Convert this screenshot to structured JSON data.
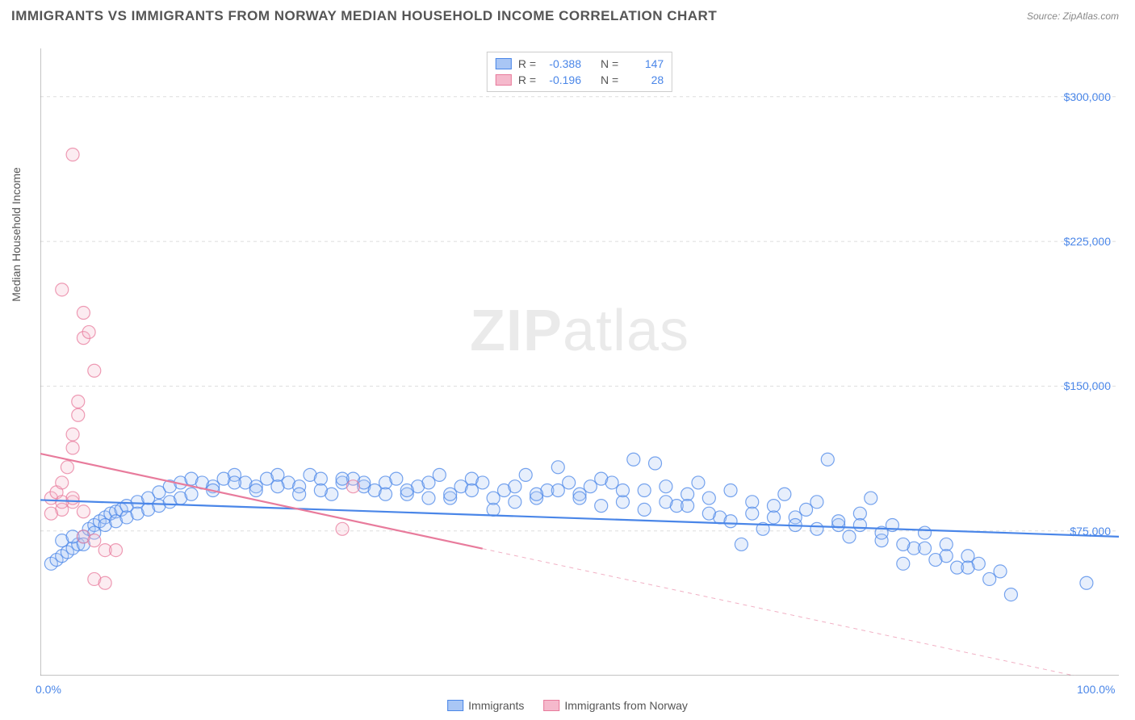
{
  "title": "IMMIGRANTS VS IMMIGRANTS FROM NORWAY MEDIAN HOUSEHOLD INCOME CORRELATION CHART",
  "source": "Source: ZipAtlas.com",
  "watermark": {
    "zip": "ZIP",
    "atlas": "atlas"
  },
  "chart": {
    "type": "scatter",
    "background_color": "#ffffff",
    "grid_color": "#dddddd",
    "axis_color": "#888888",
    "ylabel": "Median Household Income",
    "label_fontsize": 14,
    "label_color": "#555555",
    "tick_label_color": "#4a86e8",
    "xlim": [
      0,
      100
    ],
    "ylim": [
      0,
      325000
    ],
    "x_ticks": [
      0,
      100
    ],
    "x_tick_labels": [
      "0.0%",
      "100.0%"
    ],
    "x_minor_ticks": [
      10,
      20,
      30,
      40,
      50,
      60,
      70,
      80,
      90
    ],
    "y_ticks": [
      75000,
      150000,
      225000,
      300000
    ],
    "y_tick_labels": [
      "$75,000",
      "$150,000",
      "$225,000",
      "$300,000"
    ],
    "marker_radius": 8,
    "marker_stroke_width": 1.2,
    "marker_fill_opacity": 0.28,
    "line_width": 2.2,
    "series": [
      {
        "name": "Immigrants",
        "color_stroke": "#4a86e8",
        "color_fill": "#a9c6f5",
        "R": "-0.388",
        "N": "147",
        "trend": {
          "x1": 0,
          "y1": 91000,
          "x2": 100,
          "y2": 72000,
          "solid_until_x": 100
        },
        "points": [
          [
            1,
            58000
          ],
          [
            1.5,
            60000
          ],
          [
            2,
            62000
          ],
          [
            2.5,
            64000
          ],
          [
            3,
            66000
          ],
          [
            3.5,
            68000
          ],
          [
            4,
            72000
          ],
          [
            4.5,
            76000
          ],
          [
            5,
            78000
          ],
          [
            5.5,
            80000
          ],
          [
            6,
            82000
          ],
          [
            6.5,
            84000
          ],
          [
            7,
            85000
          ],
          [
            7.5,
            86000
          ],
          [
            8,
            88000
          ],
          [
            9,
            90000
          ],
          [
            10,
            92000
          ],
          [
            11,
            95000
          ],
          [
            12,
            98000
          ],
          [
            13,
            100000
          ],
          [
            14,
            102000
          ],
          [
            15,
            100000
          ],
          [
            16,
            98000
          ],
          [
            17,
            102000
          ],
          [
            18,
            104000
          ],
          [
            19,
            100000
          ],
          [
            20,
            98000
          ],
          [
            21,
            102000
          ],
          [
            22,
            104000
          ],
          [
            23,
            100000
          ],
          [
            24,
            98000
          ],
          [
            25,
            104000
          ],
          [
            26,
            102000
          ],
          [
            27,
            94000
          ],
          [
            28,
            100000
          ],
          [
            29,
            102000
          ],
          [
            30,
            98000
          ],
          [
            31,
            96000
          ],
          [
            32,
            100000
          ],
          [
            33,
            102000
          ],
          [
            34,
            94000
          ],
          [
            35,
            98000
          ],
          [
            36,
            100000
          ],
          [
            37,
            104000
          ],
          [
            38,
            92000
          ],
          [
            39,
            98000
          ],
          [
            40,
            102000
          ],
          [
            41,
            100000
          ],
          [
            42,
            86000
          ],
          [
            43,
            96000
          ],
          [
            44,
            98000
          ],
          [
            45,
            104000
          ],
          [
            46,
            92000
          ],
          [
            47,
            96000
          ],
          [
            48,
            108000
          ],
          [
            49,
            100000
          ],
          [
            50,
            94000
          ],
          [
            51,
            98000
          ],
          [
            52,
            102000
          ],
          [
            53,
            100000
          ],
          [
            54,
            90000
          ],
          [
            55,
            112000
          ],
          [
            56,
            96000
          ],
          [
            57,
            110000
          ],
          [
            58,
            98000
          ],
          [
            59,
            88000
          ],
          [
            60,
            94000
          ],
          [
            61,
            100000
          ],
          [
            62,
            92000
          ],
          [
            63,
            82000
          ],
          [
            64,
            96000
          ],
          [
            65,
            68000
          ],
          [
            66,
            90000
          ],
          [
            67,
            76000
          ],
          [
            68,
            88000
          ],
          [
            69,
            94000
          ],
          [
            70,
            82000
          ],
          [
            71,
            86000
          ],
          [
            72,
            90000
          ],
          [
            73,
            112000
          ],
          [
            74,
            78000
          ],
          [
            75,
            72000
          ],
          [
            76,
            84000
          ],
          [
            77,
            92000
          ],
          [
            78,
            70000
          ],
          [
            79,
            78000
          ],
          [
            80,
            58000
          ],
          [
            81,
            66000
          ],
          [
            82,
            74000
          ],
          [
            83,
            60000
          ],
          [
            84,
            68000
          ],
          [
            85,
            56000
          ],
          [
            86,
            62000
          ],
          [
            87,
            58000
          ],
          [
            88,
            50000
          ],
          [
            89,
            54000
          ],
          [
            90,
            42000
          ],
          [
            97,
            48000
          ],
          [
            2,
            70000
          ],
          [
            3,
            72000
          ],
          [
            4,
            68000
          ],
          [
            5,
            74000
          ],
          [
            6,
            78000
          ],
          [
            7,
            80000
          ],
          [
            8,
            82000
          ],
          [
            9,
            84000
          ],
          [
            10,
            86000
          ],
          [
            11,
            88000
          ],
          [
            12,
            90000
          ],
          [
            13,
            92000
          ],
          [
            14,
            94000
          ],
          [
            16,
            96000
          ],
          [
            18,
            100000
          ],
          [
            20,
            96000
          ],
          [
            22,
            98000
          ],
          [
            24,
            94000
          ],
          [
            26,
            96000
          ],
          [
            28,
            102000
          ],
          [
            30,
            100000
          ],
          [
            32,
            94000
          ],
          [
            34,
            96000
          ],
          [
            36,
            92000
          ],
          [
            38,
            94000
          ],
          [
            40,
            96000
          ],
          [
            42,
            92000
          ],
          [
            44,
            90000
          ],
          [
            46,
            94000
          ],
          [
            48,
            96000
          ],
          [
            50,
            92000
          ],
          [
            52,
            88000
          ],
          [
            54,
            96000
          ],
          [
            56,
            86000
          ],
          [
            58,
            90000
          ],
          [
            60,
            88000
          ],
          [
            62,
            84000
          ],
          [
            64,
            80000
          ],
          [
            66,
            84000
          ],
          [
            68,
            82000
          ],
          [
            70,
            78000
          ],
          [
            72,
            76000
          ],
          [
            74,
            80000
          ],
          [
            76,
            78000
          ],
          [
            78,
            74000
          ],
          [
            80,
            68000
          ],
          [
            82,
            66000
          ],
          [
            84,
            62000
          ],
          [
            86,
            56000
          ]
        ]
      },
      {
        "name": "Immigrants from Norway",
        "color_stroke": "#e87b9c",
        "color_fill": "#f5b9cc",
        "R": "-0.196",
        "N": "28",
        "trend": {
          "x1": 0,
          "y1": 115000,
          "x2": 100,
          "y2": -5000,
          "solid_until_x": 41
        },
        "points": [
          [
            1,
            92000
          ],
          [
            1.5,
            95000
          ],
          [
            2,
            100000
          ],
          [
            2.5,
            108000
          ],
          [
            3,
            118000
          ],
          [
            3,
            125000
          ],
          [
            3.5,
            135000
          ],
          [
            3.5,
            142000
          ],
          [
            4,
            175000
          ],
          [
            4.5,
            178000
          ],
          [
            2,
            200000
          ],
          [
            3,
            270000
          ],
          [
            4,
            188000
          ],
          [
            5,
            158000
          ],
          [
            6,
            65000
          ],
          [
            2,
            86000
          ],
          [
            3,
            90000
          ],
          [
            4,
            72000
          ],
          [
            5,
            50000
          ],
          [
            6,
            48000
          ],
          [
            7,
            65000
          ],
          [
            1,
            84000
          ],
          [
            2,
            90000
          ],
          [
            3,
            92000
          ],
          [
            4,
            85000
          ],
          [
            5,
            70000
          ],
          [
            28,
            76000
          ],
          [
            29,
            98000
          ]
        ]
      }
    ],
    "legend_top": {
      "R_label": "R =",
      "N_label": "N ="
    },
    "legend_bottom": [
      {
        "label": "Immigrants",
        "swatch_fill": "#a9c6f5",
        "swatch_stroke": "#4a86e8"
      },
      {
        "label": "Immigrants from Norway",
        "swatch_fill": "#f5b9cc",
        "swatch_stroke": "#e87b9c"
      }
    ]
  }
}
